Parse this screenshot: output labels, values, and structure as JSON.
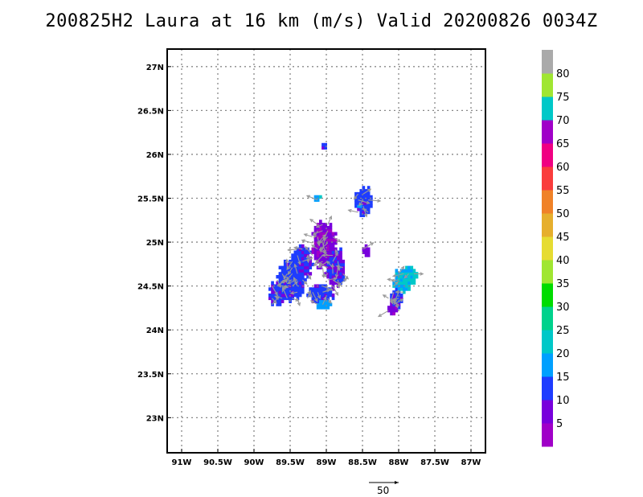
{
  "title": "200825H2 Laura at 16 km (m/s) Valid 20200826 0034Z",
  "map": {
    "lon_range": [
      -91.2,
      -86.8
    ],
    "lat_range": [
      22.6,
      27.2
    ],
    "x_ticks": [
      {
        "value": -91.0,
        "label": "91W"
      },
      {
        "value": -90.5,
        "label": "90.5W"
      },
      {
        "value": -90.0,
        "label": "90W"
      },
      {
        "value": -89.5,
        "label": "89.5W"
      },
      {
        "value": -89.0,
        "label": "89W"
      },
      {
        "value": -88.5,
        "label": "88.5W"
      },
      {
        "value": -88.0,
        "label": "88W"
      },
      {
        "value": -87.5,
        "label": "87.5W"
      },
      {
        "value": -87.0,
        "label": "87W"
      }
    ],
    "y_ticks": [
      {
        "value": 27.0,
        "label": "27N"
      },
      {
        "value": 26.5,
        "label": "26.5N"
      },
      {
        "value": 26.0,
        "label": "26N"
      },
      {
        "value": 25.5,
        "label": "25.5N"
      },
      {
        "value": 25.0,
        "label": "25N"
      },
      {
        "value": 24.5,
        "label": "24.5N"
      },
      {
        "value": 24.0,
        "label": "24N"
      },
      {
        "value": 23.5,
        "label": "23.5N"
      },
      {
        "value": 23.0,
        "label": "23N"
      }
    ],
    "grid": true,
    "wind_regions": [
      {
        "lon": -89.5,
        "lat": 24.55,
        "rlon": 0.2,
        "rlat": 0.25,
        "speed": 12
      },
      {
        "lon": -89.35,
        "lat": 24.75,
        "rlon": 0.15,
        "rlat": 0.2,
        "speed": 11
      },
      {
        "lon": -89.05,
        "lat": 24.95,
        "rlon": 0.18,
        "rlat": 0.3,
        "speed": 6
      },
      {
        "lon": -88.9,
        "lat": 24.7,
        "rlon": 0.15,
        "rlat": 0.25,
        "speed": 10
      },
      {
        "lon": -89.1,
        "lat": 24.4,
        "rlon": 0.2,
        "rlat": 0.12,
        "speed": 12
      },
      {
        "lon": -89.05,
        "lat": 24.28,
        "rlon": 0.12,
        "rlat": 0.06,
        "speed": 17
      },
      {
        "lon": -89.7,
        "lat": 24.4,
        "rlon": 0.12,
        "rlat": 0.15,
        "speed": 11
      },
      {
        "lon": -88.5,
        "lat": 25.45,
        "rlon": 0.14,
        "rlat": 0.18,
        "speed": 12
      },
      {
        "lon": -88.55,
        "lat": 25.42,
        "rlon": 0.07,
        "rlat": 0.07,
        "speed": 16
      },
      {
        "lon": -89.15,
        "lat": 25.48,
        "rlon": 0.06,
        "rlat": 0.05,
        "speed": 19
      },
      {
        "lon": -89.05,
        "lat": 26.08,
        "rlon": 0.03,
        "rlat": 0.04,
        "speed": 11
      },
      {
        "lon": -88.47,
        "lat": 24.88,
        "rlon": 0.05,
        "rlat": 0.08,
        "speed": 7
      },
      {
        "lon": -87.95,
        "lat": 24.55,
        "rlon": 0.15,
        "rlat": 0.15,
        "speed": 20
      },
      {
        "lon": -87.85,
        "lat": 24.6,
        "rlon": 0.1,
        "rlat": 0.12,
        "speed": 22
      },
      {
        "lon": -88.05,
        "lat": 24.35,
        "rlon": 0.1,
        "rlat": 0.12,
        "speed": 11
      },
      {
        "lon": -88.1,
        "lat": 24.22,
        "rlon": 0.08,
        "rlat": 0.07,
        "speed": 6
      }
    ],
    "vector_color": "#9a9a9a",
    "reference_vector_label": "50"
  },
  "colorbar": {
    "bins": [
      {
        "color": "#a000c8"
      },
      {
        "color": "#7800dc"
      },
      {
        "color": "#1e3cff"
      },
      {
        "color": "#00a0ff"
      },
      {
        "color": "#00c8c8"
      },
      {
        "color": "#00d28c"
      },
      {
        "color": "#00dc00"
      },
      {
        "color": "#a0e632"
      },
      {
        "color": "#e6dc32"
      },
      {
        "color": "#e6af2d"
      },
      {
        "color": "#f08228"
      },
      {
        "color": "#fa3c3c"
      },
      {
        "color": "#f00082"
      },
      {
        "color": "#a000c8"
      },
      {
        "color": "#00c8c8"
      },
      {
        "color": "#a0e632"
      },
      {
        "color": "#aaaaaa"
      }
    ],
    "labels": [
      "5",
      "10",
      "15",
      "20",
      "25",
      "30",
      "35",
      "40",
      "45",
      "50",
      "55",
      "60",
      "65",
      "70",
      "75",
      "80"
    ]
  }
}
